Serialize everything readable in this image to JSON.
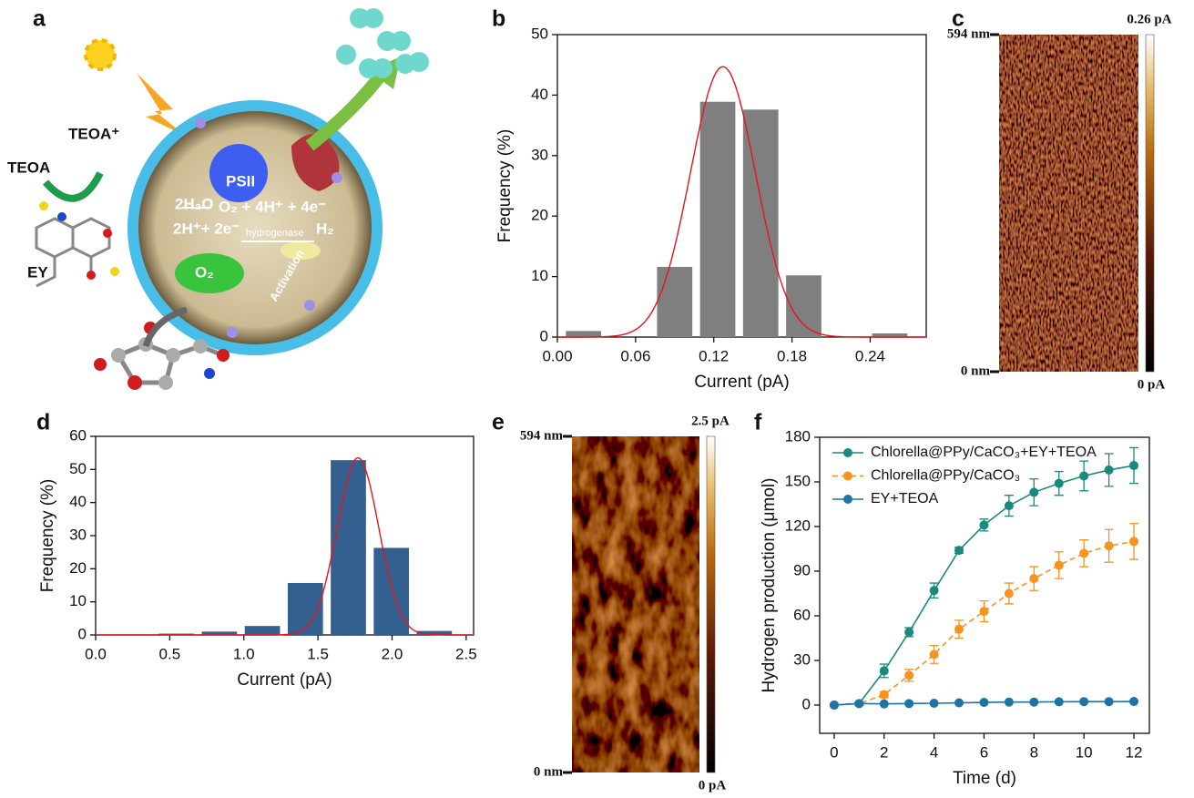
{
  "scheme": {
    "panel": "a",
    "labels": {
      "teoa": "TEOA",
      "teoa_plus": "TEOA⁺",
      "ey": "EY",
      "psii": "PSII",
      "water": "2H₂O",
      "products": "O₂ + 4H⁺ + 4e⁻",
      "protons": "2H⁺+ 2e⁻",
      "enzyme": "hydrogenase",
      "hydrogen": "H₂",
      "oxygen": "O₂",
      "activation": "Activation"
    }
  },
  "chart_data": [
    {
      "panel": "b",
      "type": "histogram",
      "x_label": "Current (pA)",
      "y_label": "Frequency (%)",
      "color": "#7f7f7f",
      "x": [
        0.02,
        0.09,
        0.123,
        0.156,
        0.189,
        0.255
      ],
      "values": [
        1,
        11.6,
        38.9,
        37.6,
        10.2,
        0.6
      ],
      "fit": {
        "color": "#e8141b",
        "center": 0.127,
        "sigma": 0.025,
        "peak": 44.7
      },
      "xlim": [
        0,
        0.283
      ],
      "xticks": [
        {
          "value": 0,
          "label": "0.00"
        },
        0.06,
        0.12,
        0.18,
        0.24
      ],
      "ylim": [
        0,
        50
      ],
      "yticks": [
        0,
        10,
        20,
        30,
        40,
        50
      ]
    },
    {
      "panel": "c",
      "type": "image",
      "y_top_label": "594 nm",
      "y_bottom_label": "0 nm",
      "scale_max_label": "0.26 pA",
      "scale_min_label": "0 pA"
    },
    {
      "panel": "d",
      "type": "histogram",
      "x_label": "Current (pA)",
      "y_label": "Frequency (%)",
      "color": "#34608f",
      "x": [
        0.545,
        0.835,
        1.125,
        1.415,
        1.705,
        1.995,
        2.285
      ],
      "values": [
        0.4,
        1,
        2.7,
        15.7,
        52.8,
        26.3,
        1.2
      ],
      "fit": {
        "color": "#e8141b",
        "center": 1.77,
        "sigma": 0.14,
        "peak": 53.5
      },
      "xlim": [
        0,
        2.55
      ],
      "xticks": [
        {
          "value": 0,
          "label": "0.0"
        },
        0.5,
        {
          "value": 1,
          "label": "1.0"
        },
        1.5,
        {
          "value": 2,
          "label": "2.0"
        },
        2.5
      ],
      "ylim": [
        0,
        60
      ],
      "yticks": [
        0,
        10,
        20,
        30,
        40,
        50,
        60
      ]
    },
    {
      "panel": "e",
      "type": "image",
      "y_top_label": "594 nm",
      "y_bottom_label": "0 nm",
      "scale_max_label": "2.5 pA",
      "scale_min_label": "0 pA"
    },
    {
      "panel": "f",
      "type": "line",
      "x_label": "Time (d)",
      "y_label": "Hydrogen production (μmol)",
      "legend": "upper left",
      "x": [
        0,
        1,
        2,
        3,
        4,
        5,
        6,
        7,
        8,
        9,
        10,
        11,
        12
      ],
      "series": [
        {
          "name": "Chlorella@PPy/CaCO₃+EY+TEOA",
          "color": "#1a8a7c",
          "dash": false,
          "values": [
            0,
            1,
            23,
            49,
            77,
            104,
            121,
            134,
            143,
            149,
            154,
            158,
            161
          ],
          "errors": [
            0,
            1,
            4.5,
            3,
            5,
            2,
            4,
            7,
            9,
            8,
            10,
            11,
            12
          ]
        },
        {
          "name": "Chlorella@PPy/CaCO₃",
          "color": "#f7931e",
          "dash": true,
          "values": [
            0,
            1,
            7,
            20,
            34,
            51,
            63,
            75,
            85,
            94,
            102,
            107,
            110
          ],
          "errors": [
            0,
            0.5,
            2,
            4,
            6,
            6,
            7,
            7,
            8,
            9,
            9,
            11,
            12
          ]
        },
        {
          "name": "EY+TEOA",
          "color": "#1f74a6",
          "dash": false,
          "values": [
            0,
            1,
            0.8,
            1,
            1.2,
            1.5,
            1.8,
            2,
            2,
            2.2,
            2.3,
            2.3,
            2.4
          ],
          "errors": [
            0,
            0,
            0,
            0,
            0,
            0,
            0,
            0,
            0,
            0,
            0,
            0,
            0
          ]
        }
      ],
      "xlim": [
        -0.58,
        12.62
      ],
      "xticks": [
        0,
        2,
        4,
        6,
        8,
        10,
        12
      ],
      "ylim": [
        -19,
        180
      ],
      "yticks": [
        0,
        30,
        60,
        90,
        120,
        150,
        180
      ]
    }
  ]
}
